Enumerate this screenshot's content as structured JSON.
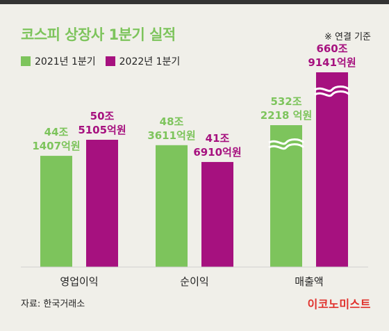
{
  "title": "코스피 상장사 1분기 실적",
  "basis_note": "※ 연결 기준",
  "source": "자료: 한국거래소",
  "brand": "이코노미스트",
  "colors": {
    "y2021": "#7dc45c",
    "y2022": "#a6117f",
    "title": "#7dc45c",
    "brand": "#e0302b"
  },
  "chart_data": {
    "type": "bar",
    "title": "코스피 상장사 1분기 실적",
    "categories": [
      "영업이익",
      "순이익",
      "매출액"
    ],
    "series": [
      {
        "name": "2021년 1분기",
        "values": [
          441407,
          483611,
          5322218
        ],
        "labels": [
          [
            "44조",
            "1407억원"
          ],
          [
            "48조",
            "3611억원"
          ],
          [
            "532조",
            "2218 억원"
          ]
        ]
      },
      {
        "name": "2022년 1분기",
        "values": [
          505105,
          416910,
          6609141
        ],
        "labels": [
          [
            "50조",
            "5105억원"
          ],
          [
            "41조",
            "6910억원"
          ],
          [
            "660조",
            "9141억원"
          ]
        ]
      }
    ],
    "unit": "억원",
    "axis_break": {
      "category": "매출액"
    },
    "legend_position": "top-left",
    "grid": false
  }
}
